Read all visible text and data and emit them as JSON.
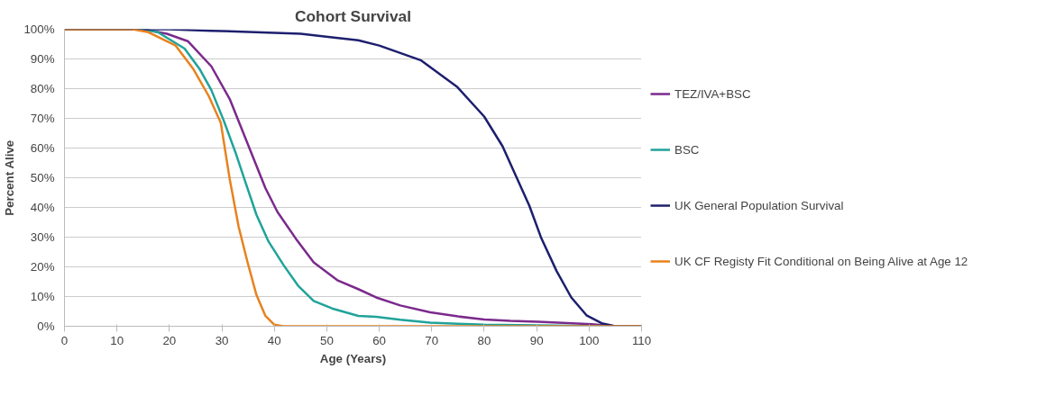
{
  "chart_data": {
    "type": "line",
    "title": "Cohort Survival",
    "xlabel": "Age (Years)",
    "ylabel": "Percent Alive",
    "xlim": [
      0,
      110
    ],
    "xticks": [
      0,
      10,
      20,
      30,
      40,
      50,
      60,
      70,
      80,
      90,
      100,
      110
    ],
    "ylim": [
      0,
      100
    ],
    "yticks": [
      {
        "value": 0,
        "label": "0%"
      },
      {
        "value": 10,
        "label": "10%"
      },
      {
        "value": 20,
        "label": "20%"
      },
      {
        "value": 30,
        "label": "30%"
      },
      {
        "value": 40,
        "label": "40%"
      },
      {
        "value": 50,
        "label": "50%"
      },
      {
        "value": 60,
        "label": "60%"
      },
      {
        "value": 70,
        "label": "70%"
      },
      {
        "value": 80,
        "label": "80%"
      },
      {
        "value": 90,
        "label": "90%"
      },
      {
        "value": 100,
        "label": "100%"
      }
    ],
    "grid": "y",
    "legend": "right",
    "marker": "none",
    "line_style": "solid",
    "series": [
      {
        "name": "TEZ/IVA+BSC",
        "color": "#7b2a8c",
        "x": [
          0,
          15,
          19.5,
          23.5,
          28,
          31.5,
          34.9,
          38.3,
          40.6,
          44.1,
          47.5,
          52,
          56,
          59.4,
          64,
          69.7,
          75,
          80,
          85,
          90.3,
          95,
          100.5,
          105,
          110
        ],
        "values": [
          100,
          100,
          98.5,
          96,
          87.5,
          76.5,
          61.5,
          46.5,
          38.5,
          29.5,
          21.5,
          15.5,
          12.5,
          9.7,
          7,
          4.7,
          3.3,
          2.3,
          1.8,
          1.5,
          1.1,
          0.7,
          0,
          0
        ]
      },
      {
        "name": "BSC",
        "color": "#1fa39a",
        "x": [
          0,
          15,
          17.8,
          22.9,
          25.8,
          28,
          30.3,
          32.6,
          34.3,
          36.6,
          38.9,
          41.8,
          44.6,
          47.5,
          51,
          56,
          59.4,
          64,
          69.7,
          75,
          80,
          90,
          100,
          105,
          110
        ],
        "values": [
          100,
          100,
          99,
          93.5,
          86.5,
          79.5,
          69.5,
          58.5,
          49.5,
          37.5,
          28.5,
          20.5,
          13.5,
          8.5,
          6,
          3.5,
          3.2,
          2.2,
          1.2,
          0.8,
          0.5,
          0.3,
          0.1,
          0,
          0
        ]
      },
      {
        "name": "UK General Population Survival",
        "color": "#1d1f6e",
        "x": [
          0,
          20,
          28,
          45,
          51,
          56,
          60,
          68,
          74.9,
          80,
          83.5,
          86.3,
          88.6,
          90.9,
          93.8,
          96.6,
          99.5,
          102.4,
          105,
          110
        ],
        "values": [
          100,
          100,
          99.5,
          98.5,
          97.3,
          96.3,
          94.5,
          89.5,
          80.5,
          70.6,
          60.6,
          49.6,
          40.6,
          29.6,
          18.6,
          9.7,
          3.7,
          1,
          0,
          0
        ]
      },
      {
        "name": "UK CF Registy Fit Conditional on Being Alive at Age 12",
        "color": "#e8821e",
        "x": [
          0,
          13,
          16,
          21.2,
          24.6,
          27.5,
          29.8,
          31.5,
          33.2,
          34.9,
          36.6,
          38.3,
          40,
          41.7,
          110
        ],
        "values": [
          100,
          100,
          99,
          94.5,
          86.5,
          77.5,
          68.5,
          49.5,
          33.5,
          21.5,
          10.5,
          3.5,
          0.5,
          0,
          0
        ]
      }
    ]
  }
}
